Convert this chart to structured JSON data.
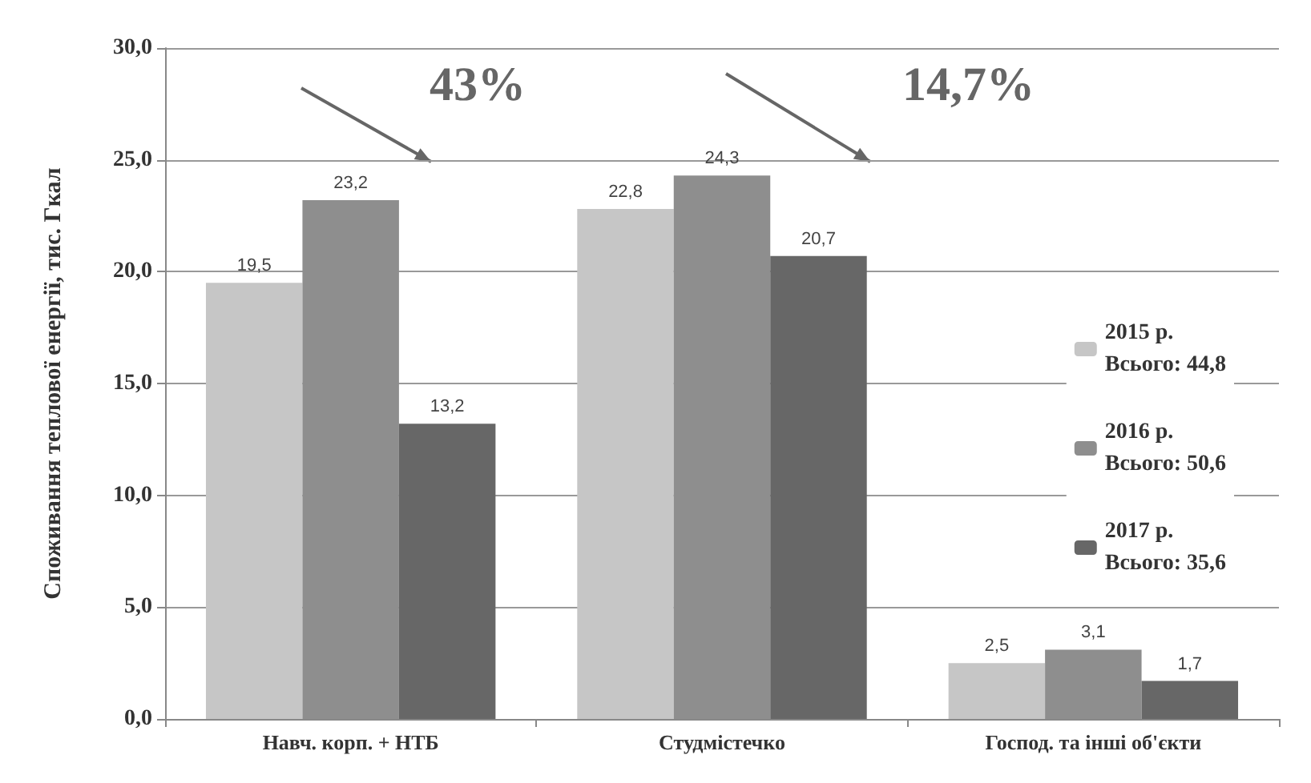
{
  "chart_data": {
    "type": "bar",
    "ylabel": "Споживання теплової енергії, тис. Гкал",
    "categories": [
      "Навч. корп. + НТБ",
      "Студмістечко",
      "Господ. та інші об'єкти"
    ],
    "series": [
      {
        "name": "2015 р.\nВсього: 44,8",
        "color": "#c6c6c6",
        "values": [
          19.5,
          22.8,
          2.5
        ],
        "value_labels": [
          "19,5",
          "22,8",
          "2,5"
        ]
      },
      {
        "name": "2016 р.\nВсього: 50,6",
        "color": "#8e8e8e",
        "values": [
          23.2,
          24.3,
          3.1
        ],
        "value_labels": [
          "23,2",
          "24,3",
          "3,1"
        ]
      },
      {
        "name": "2017 р.\nВсього: 35,6",
        "color": "#676767",
        "values": [
          13.2,
          20.7,
          1.7
        ],
        "value_labels": [
          "13,2",
          "20,7",
          "1,7"
        ]
      }
    ],
    "ylim": [
      0,
      30
    ],
    "yticks": [
      {
        "value": 0,
        "label": "0,0"
      },
      {
        "value": 5,
        "label": "5,0"
      },
      {
        "value": 10,
        "label": "10,0"
      },
      {
        "value": 15,
        "label": "15,0"
      },
      {
        "value": 20,
        "label": "20,0"
      },
      {
        "value": 25,
        "label": "25,0"
      },
      {
        "value": 30,
        "label": "30,0"
      }
    ],
    "grid": "y",
    "legend": "right",
    "annotations": [
      "43%",
      "14,7%"
    ]
  }
}
